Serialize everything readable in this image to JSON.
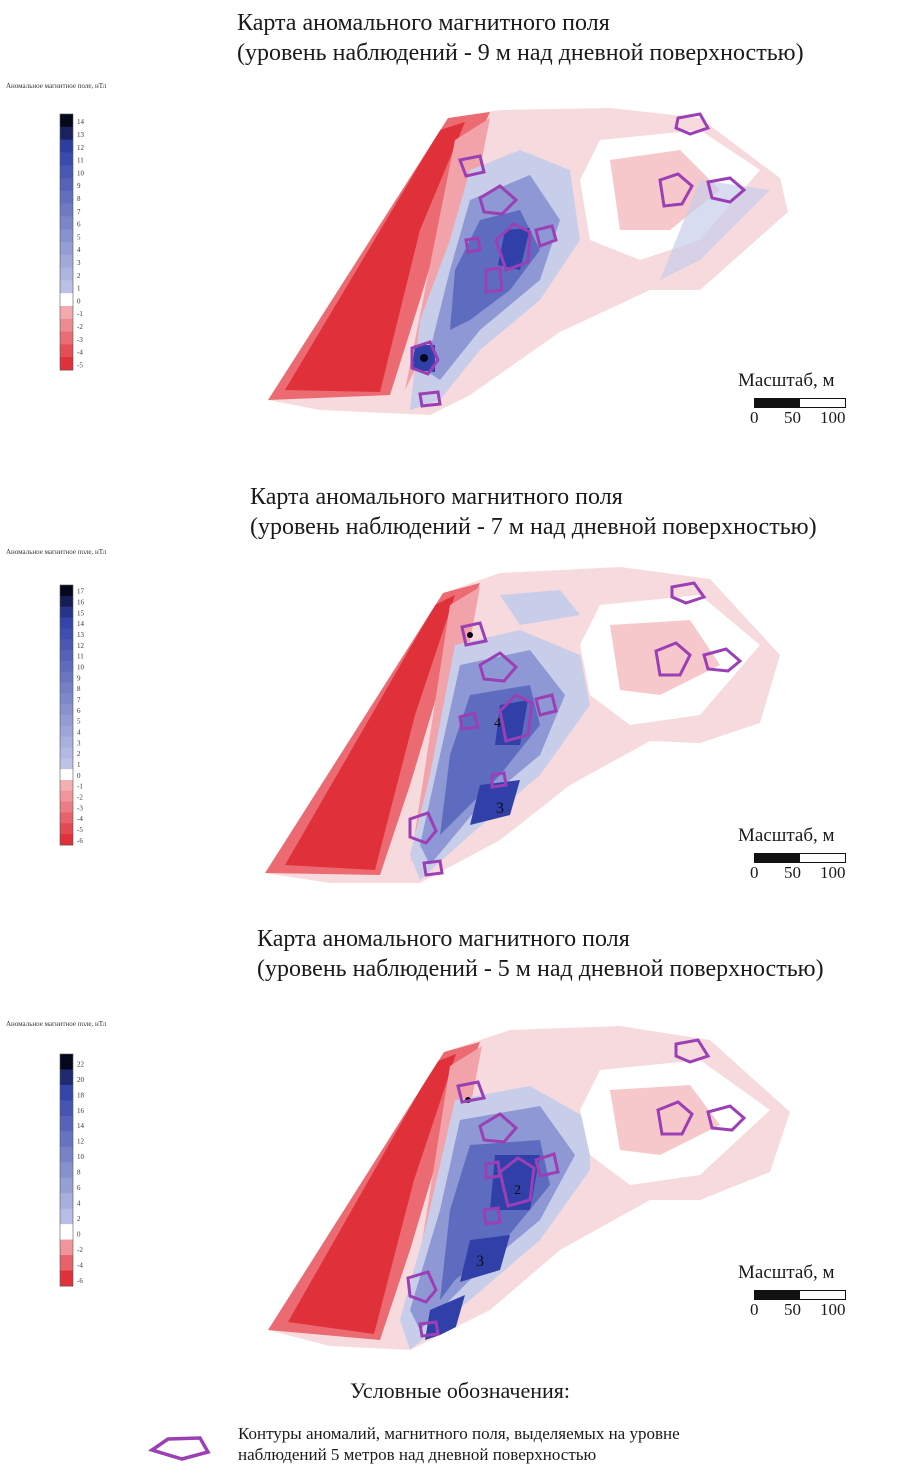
{
  "maps": [
    {
      "title_line1": "Карта аномального магнитного поля",
      "title_line2": "(уровень наблюдений - 9 м над дневной поверхностью)",
      "colorbar_title": "Аномальное магнитное поле, нТл",
      "colorbar_ticks": [
        "14",
        "13",
        "12",
        "11",
        "10",
        "9",
        "8",
        "7",
        "6",
        "5",
        "4",
        "3",
        "2",
        "1",
        "0",
        "-1",
        "-2",
        "-3",
        "-4",
        "-5"
      ],
      "scale": {
        "label": "Масштаб, м",
        "ticks": [
          "0",
          "50",
          "100"
        ]
      }
    },
    {
      "title_line1": "Карта аномального магнитного поля",
      "title_line2": "(уровень наблюдений - 7 м над дневной поверхностью)",
      "colorbar_title": "Аномальное магнитное поле, нТл",
      "colorbar_ticks": [
        "17",
        "16",
        "15",
        "14",
        "13",
        "12",
        "11",
        "10",
        "9",
        "8",
        "7",
        "6",
        "5",
        "4",
        "3",
        "2",
        "1",
        "0",
        "-1",
        "-2",
        "-3",
        "-4",
        "-5",
        "-6"
      ],
      "labels": [
        "4",
        "3"
      ],
      "scale": {
        "label": "Масштаб, м",
        "ticks": [
          "0",
          "50",
          "100"
        ]
      }
    },
    {
      "title_line1": "Карта аномального магнитного поля",
      "title_line2": "(уровень наблюдений - 5 м над дневной поверхностью)",
      "colorbar_title": "Аномальное магнитное поле, нТл",
      "colorbar_ticks": [
        "22",
        "20",
        "18",
        "16",
        "14",
        "12",
        "10",
        "8",
        "6",
        "4",
        "2",
        "0",
        "-2",
        "-4",
        "-6"
      ],
      "labels": [
        "2",
        "3"
      ],
      "scale": {
        "label": "Масштаб, м",
        "ticks": [
          "0",
          "50",
          "100"
        ]
      }
    }
  ],
  "legend": {
    "heading": "Условные обозначения:",
    "item_line1": "Контуры аномалий, магнитного поля, выделяемых на уровне",
    "item_line2": "наблюдений 5 метров над дневной поверхностью",
    "symbol_icon": "purple-pentagon-outline-icon"
  },
  "colors": {
    "negative_strong": "#e0303a",
    "negative_light": "#f6c8cc",
    "zero": "#ffffff",
    "positive_light": "#c8cdea",
    "positive_strong": "#3040a8",
    "max": "#05071c",
    "contour": "#9b3fb5"
  }
}
